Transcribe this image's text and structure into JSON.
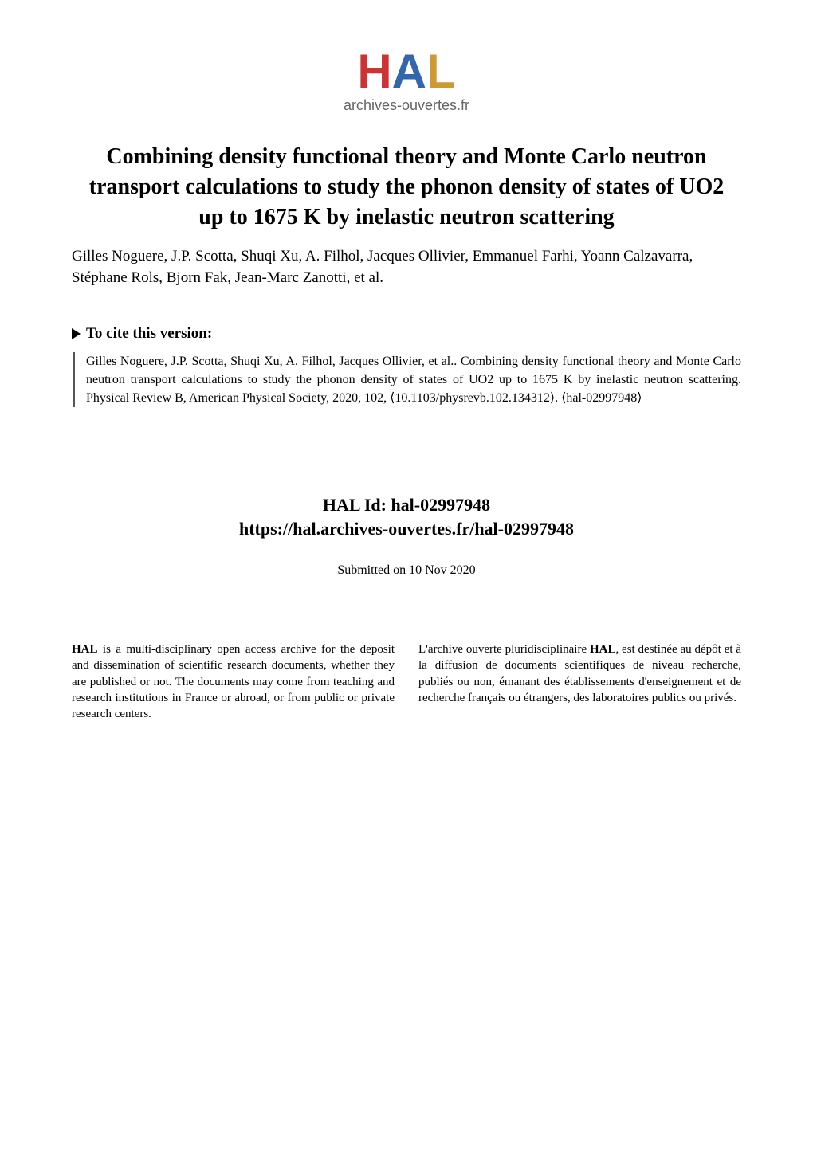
{
  "logo": {
    "letters": {
      "h": "H",
      "a": "A",
      "l": "L"
    },
    "subtitle": "archives-ouvertes.fr",
    "colors": {
      "h": "#cc3333",
      "a": "#3366aa",
      "l": "#cc9933",
      "subtitle": "#666666"
    }
  },
  "title": "Combining density functional theory and Monte Carlo neutron transport calculations to study the phonon density of states of UO2 up to 1675 K by inelastic neutron scattering",
  "authors": "Gilles Noguere, J.P. Scotta, Shuqi Xu, A. Filhol, Jacques Ollivier, Emmanuel Farhi, Yoann Calzavarra, Stéphane Rols, Bjorn Fak, Jean-Marc Zanotti, et al.",
  "cite": {
    "header": "To cite this version:",
    "body": "Gilles Noguere, J.P. Scotta, Shuqi Xu, A. Filhol, Jacques Ollivier, et al.. Combining density functional theory and Monte Carlo neutron transport calculations to study the phonon density of states of UO2 up to 1675 K by inelastic neutron scattering. Physical Review B, American Physical Society, 2020, 102, ⟨10.1103/physrevb.102.134312⟩. ⟨hal-02997948⟩"
  },
  "hal_id": {
    "label": "HAL Id: hal-02997948",
    "url": "https://hal.archives-ouvertes.fr/hal-02997948"
  },
  "submitted": "Submitted on 10 Nov 2020",
  "footer": {
    "left": {
      "bold": "HAL",
      "text": " is a multi-disciplinary open access archive for the deposit and dissemination of scientific research documents, whether they are published or not. The documents may come from teaching and research institutions in France or abroad, or from public or private research centers."
    },
    "right": {
      "prefix": "L'archive ouverte pluridisciplinaire ",
      "bold": "HAL",
      "text": ", est destinée au dépôt et à la diffusion de documents scientifiques de niveau recherche, publiés ou non, émanant des établissements d'enseignement et de recherche français ou étrangers, des laboratoires publics ou privés."
    }
  },
  "typography": {
    "title_fontsize": 28,
    "authors_fontsize": 19,
    "cite_header_fontsize": 19,
    "cite_body_fontsize": 16,
    "hal_id_fontsize": 22,
    "submitted_fontsize": 16,
    "footer_fontsize": 15,
    "font_family": "Times New Roman"
  },
  "colors": {
    "background": "#ffffff",
    "text": "#000000",
    "cite_border": "#555555"
  }
}
